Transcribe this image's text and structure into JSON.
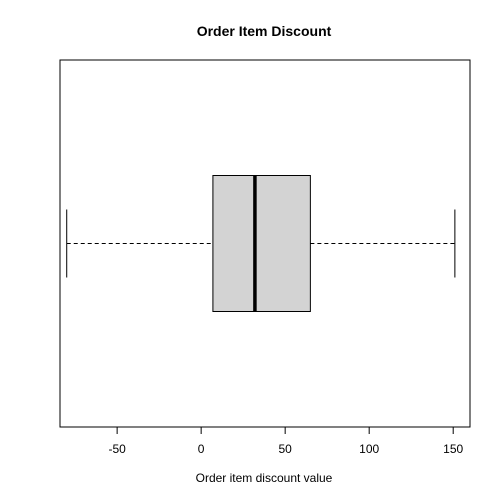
{
  "chart_data": {
    "type": "boxplot",
    "title": "Order Item Discount",
    "xlabel": "Order item discount value",
    "ylabel": "",
    "orientation": "horizontal",
    "xlim": [
      -84,
      160
    ],
    "x_ticks": [
      -50,
      0,
      50,
      100,
      150
    ],
    "grid": false,
    "legend": "none",
    "box": {
      "min": -80,
      "q1": 7,
      "median": 32,
      "q3": 65,
      "max": 151
    },
    "colors": {
      "box_fill": "#d3d3d3",
      "stroke": "#000000"
    }
  }
}
